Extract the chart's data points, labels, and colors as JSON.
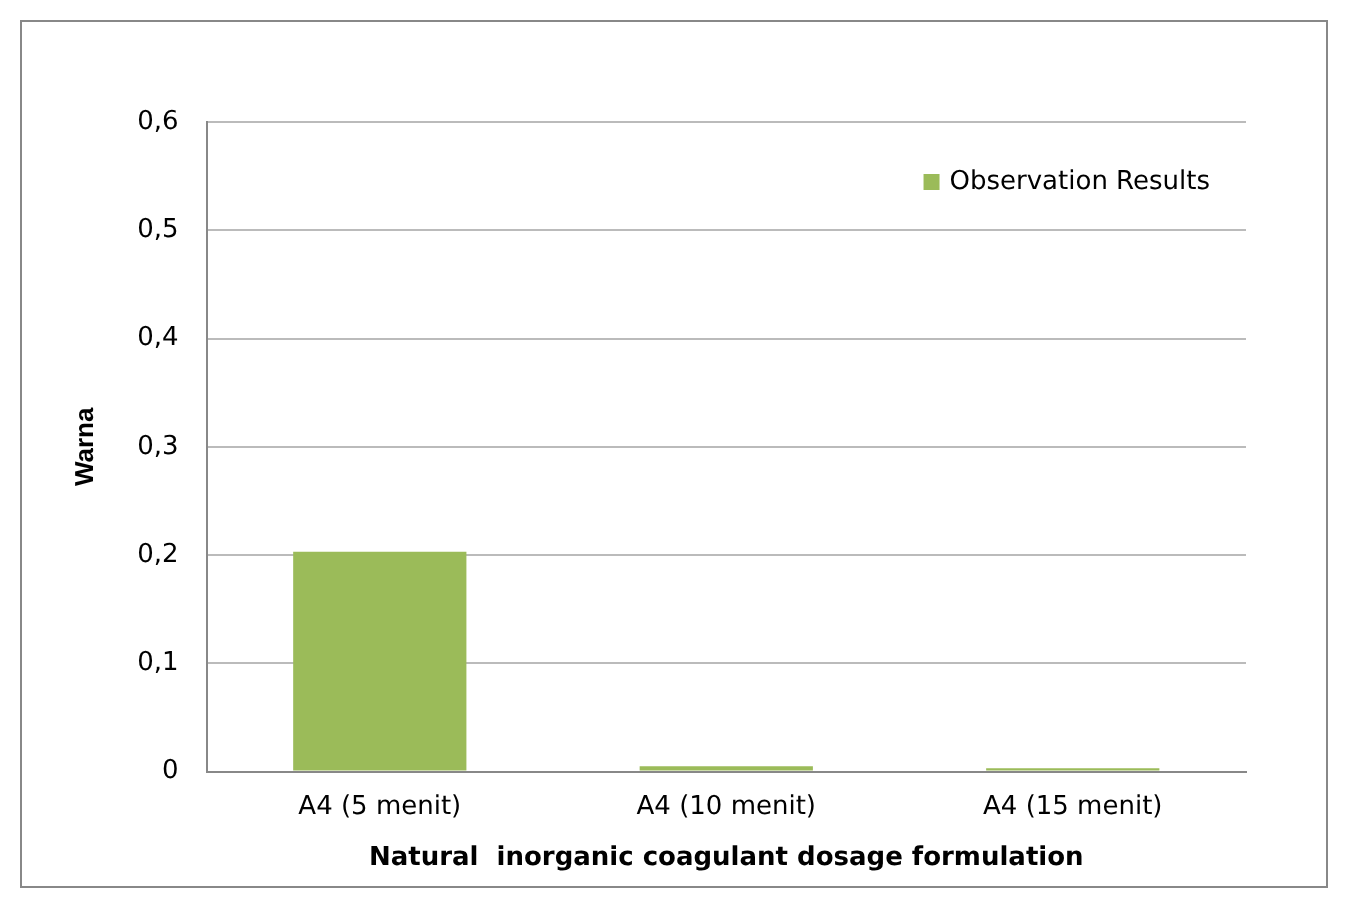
{
  "chart_data": {
    "type": "bar",
    "xlabel": "Natural  inorganic coagulant dosage formulation",
    "ylabel": "Warna",
    "categories": [
      "A4 (5 menit)",
      "A4 (10 menit)",
      "A4 (15 menit)"
    ],
    "series": [
      {
        "name": "Observation Results",
        "color": "#9bbb59",
        "values": [
          0.203,
          0.005,
          0.003
        ]
      }
    ],
    "ylim": [
      0,
      0.6
    ],
    "yticks": [
      0,
      {
        "value": 0.1,
        "label": "0,1"
      },
      {
        "value": 0.2,
        "label": "0,2"
      },
      {
        "value": 0.3,
        "label": "0,3"
      },
      {
        "value": 0.4,
        "label": "0,4"
      },
      {
        "value": 0.5,
        "label": "0,5"
      },
      {
        "value": 0.6,
        "label": "0,6"
      }
    ],
    "grid": "y",
    "legend": "top right"
  }
}
